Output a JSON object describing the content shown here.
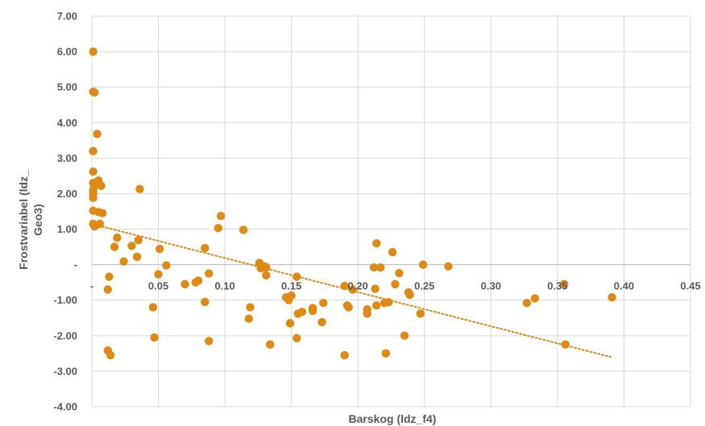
{
  "colors": {
    "marker": "#E08A16",
    "trend": "#E08A16",
    "grid": "#D9D9D9",
    "text": "#595959"
  },
  "chart_data": {
    "type": "scatter",
    "title": "",
    "xlabel": "Barskog (ldz_f4)",
    "ylabel_lines": [
      "Frostvariabel (ldz_",
      "Geo3)"
    ],
    "xlim": [
      0,
      0.45
    ],
    "ylim": [
      -4,
      7
    ],
    "x_ticks": [
      {
        "v": 0,
        "label": "-"
      },
      {
        "v": 0.05,
        "label": "0.05"
      },
      {
        "v": 0.1,
        "label": "0.10"
      },
      {
        "v": 0.15,
        "label": "0.15"
      },
      {
        "v": 0.2,
        "label": "0.20"
      },
      {
        "v": 0.25,
        "label": "0.25"
      },
      {
        "v": 0.3,
        "label": "0.30"
      },
      {
        "v": 0.35,
        "label": "0.35"
      },
      {
        "v": 0.4,
        "label": "0.40"
      },
      {
        "v": 0.45,
        "label": "0.45"
      }
    ],
    "y_ticks": [
      {
        "v": 7,
        "label": "7.00"
      },
      {
        "v": 6,
        "label": "6.00"
      },
      {
        "v": 5,
        "label": "5.00"
      },
      {
        "v": 4,
        "label": "4.00"
      },
      {
        "v": 3,
        "label": "3.00"
      },
      {
        "v": 2,
        "label": "2.00"
      },
      {
        "v": 1,
        "label": "1.00"
      },
      {
        "v": 0,
        "label": "-"
      },
      {
        "v": -1,
        "label": "-1.00"
      },
      {
        "v": -2,
        "label": "-2.00"
      },
      {
        "v": -3,
        "label": "-3.00"
      },
      {
        "v": -4,
        "label": "-4.00"
      }
    ],
    "grid": true,
    "legend": "none",
    "trendline": {
      "style": "dotted",
      "x": [
        0.005,
        0.39
      ],
      "y": [
        1.1,
        -2.6
      ]
    },
    "points": [
      [
        0.001,
        6.0
      ],
      [
        0.001,
        4.87
      ],
      [
        0.002,
        4.85
      ],
      [
        0.004,
        3.68
      ],
      [
        0.001,
        3.2
      ],
      [
        0.001,
        2.62
      ],
      [
        0.001,
        2.3
      ],
      [
        0.002,
        2.21
      ],
      [
        0.005,
        2.37
      ],
      [
        0.007,
        2.22
      ],
      [
        0.001,
        2.1
      ],
      [
        0.001,
        2.0
      ],
      [
        0.001,
        1.88
      ],
      [
        0.001,
        1.52
      ],
      [
        0.005,
        1.48
      ],
      [
        0.008,
        1.45
      ],
      [
        0.001,
        1.15
      ],
      [
        0.002,
        1.08
      ],
      [
        0.006,
        1.15
      ],
      [
        0.036,
        2.13
      ],
      [
        0.019,
        0.76
      ],
      [
        0.017,
        0.5
      ],
      [
        0.03,
        0.53
      ],
      [
        0.035,
        0.69
      ],
      [
        0.034,
        0.22
      ],
      [
        0.024,
        0.09
      ],
      [
        0.013,
        -0.34
      ],
      [
        0.012,
        -0.7
      ],
      [
        0.051,
        0.44
      ],
      [
        0.056,
        -0.02
      ],
      [
        0.05,
        -0.27
      ],
      [
        0.046,
        -1.2
      ],
      [
        0.047,
        -2.05
      ],
      [
        0.012,
        -2.42
      ],
      [
        0.014,
        -2.55
      ],
      [
        0.07,
        -0.55
      ],
      [
        0.078,
        -0.5
      ],
      [
        0.08,
        -0.45
      ],
      [
        0.085,
        0.47
      ],
      [
        0.088,
        -0.25
      ],
      [
        0.085,
        -1.05
      ],
      [
        0.088,
        -2.15
      ],
      [
        0.095,
        1.03
      ],
      [
        0.097,
        1.37
      ],
      [
        0.114,
        0.98
      ],
      [
        0.119,
        -1.2
      ],
      [
        0.118,
        -1.52
      ],
      [
        0.126,
        0.05
      ],
      [
        0.127,
        -0.1
      ],
      [
        0.13,
        -0.05
      ],
      [
        0.131,
        -0.08
      ],
      [
        0.131,
        -0.3
      ],
      [
        0.134,
        -2.25
      ],
      [
        0.146,
        -0.92
      ],
      [
        0.148,
        -1.0
      ],
      [
        0.15,
        -0.87
      ],
      [
        0.149,
        -1.65
      ],
      [
        0.154,
        -0.34
      ],
      [
        0.155,
        -1.38
      ],
      [
        0.158,
        -1.33
      ],
      [
        0.154,
        -2.07
      ],
      [
        0.166,
        -1.22
      ],
      [
        0.166,
        -1.3
      ],
      [
        0.174,
        -1.08
      ],
      [
        0.173,
        -1.62
      ],
      [
        0.19,
        -0.6
      ],
      [
        0.192,
        -1.15
      ],
      [
        0.193,
        -1.2
      ],
      [
        0.19,
        -2.55
      ],
      [
        0.196,
        -0.7
      ],
      [
        0.207,
        -1.26
      ],
      [
        0.207,
        -1.38
      ],
      [
        0.212,
        -0.08
      ],
      [
        0.214,
        0.6
      ],
      [
        0.213,
        -0.68
      ],
      [
        0.214,
        -1.15
      ],
      [
        0.217,
        -0.08
      ],
      [
        0.22,
        -1.08
      ],
      [
        0.223,
        -1.06
      ],
      [
        0.221,
        -2.5
      ],
      [
        0.226,
        0.35
      ],
      [
        0.228,
        -0.55
      ],
      [
        0.231,
        -0.24
      ],
      [
        0.235,
        -2.0
      ],
      [
        0.238,
        -0.78
      ],
      [
        0.239,
        -0.85
      ],
      [
        0.247,
        -1.38
      ],
      [
        0.249,
        0.0
      ],
      [
        0.268,
        -0.05
      ],
      [
        0.327,
        -1.08
      ],
      [
        0.333,
        -0.95
      ],
      [
        0.355,
        -0.55
      ],
      [
        0.356,
        -2.25
      ],
      [
        0.391,
        -0.92
      ]
    ]
  }
}
